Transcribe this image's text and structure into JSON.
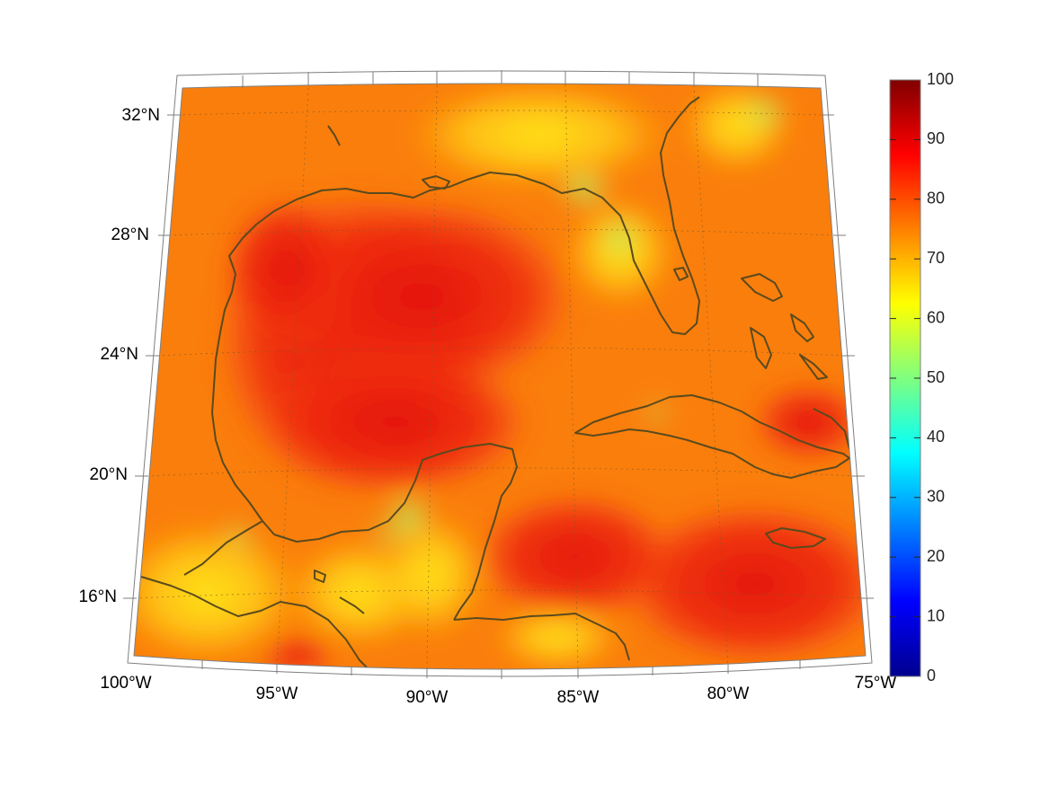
{
  "map": {
    "lon_labels": [
      "100°W",
      "95°W",
      "90°W",
      "85°W",
      "80°W",
      "75°W"
    ],
    "lat_labels": [
      "32°N",
      "28°N",
      "24°N",
      "20°N",
      "16°N"
    ],
    "colorbar": {
      "min": 0,
      "max": 100,
      "tick_labels": [
        "100",
        "90",
        "80",
        "70",
        "60",
        "50",
        "40",
        "30",
        "20",
        "10",
        "0"
      ],
      "colormap": "jet"
    },
    "colors": {
      "coastline": "#5a4a1e",
      "grid": "#7a5a2a",
      "frame": "#7f7f7f"
    }
  }
}
